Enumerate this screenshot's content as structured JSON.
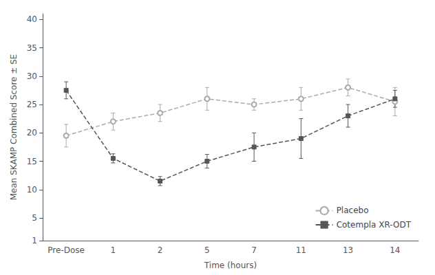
{
  "chart_data": {
    "type": "line",
    "xlabel": "Time (hours)",
    "ylabel": "Mean SKAMP Combined Score ± SE",
    "categories": [
      "Pre-Dose",
      "1",
      "2",
      "5",
      "7",
      "11",
      "13",
      "14"
    ],
    "series": [
      {
        "name": "Placebo",
        "color": "#aaaaaa",
        "marker": "circle",
        "line_style": "dashed",
        "values": [
          19.5,
          22.0,
          23.5,
          26.0,
          25.0,
          26.0,
          28.0,
          25.5
        ],
        "errors": [
          2.0,
          1.5,
          1.5,
          2.0,
          1.0,
          2.0,
          1.5,
          2.5
        ]
      },
      {
        "name": "Cotempla XR-ODT",
        "color": "#555555",
        "marker": "square",
        "line_style": "dashed",
        "values": [
          27.5,
          15.5,
          11.5,
          15.0,
          17.5,
          19.0,
          23.0,
          26.0
        ],
        "errors": [
          1.5,
          0.8,
          0.8,
          1.2,
          2.5,
          3.5,
          2.0,
          1.5
        ]
      }
    ],
    "ylim": [
      1,
      41
    ],
    "yticks": [
      1,
      5,
      10,
      15,
      20,
      25,
      30,
      35,
      40
    ],
    "legend": "lower right",
    "grid": false
  }
}
